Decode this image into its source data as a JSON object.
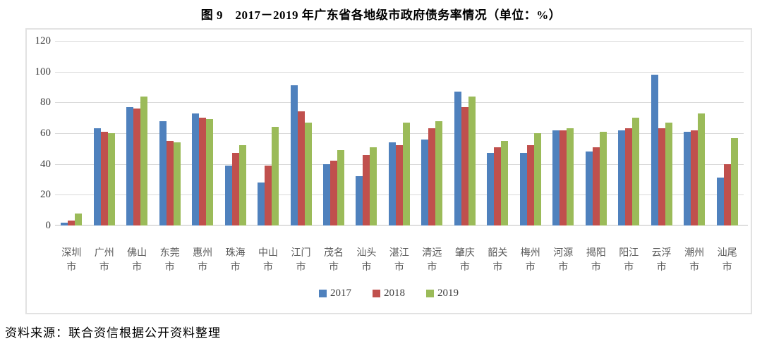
{
  "title": "图 9　2017－2019 年广东省各地级市政府债务率情况（单位：%）",
  "source": "资料来源：联合资信根据公开资料整理",
  "colors": {
    "series_2017": "#4f81bd",
    "series_2018": "#c0504d",
    "series_2019": "#9bbb59",
    "gridline": "#d9d9d9",
    "axis_line": "#bfbfbf",
    "tick_label": "#404040",
    "category_label": "#595959"
  },
  "chart_data": {
    "type": "bar",
    "title": "图 9　2017－2019 年广东省各地级市政府债务率情况（单位：%）",
    "categories": [
      "深圳市",
      "广州市",
      "佛山市",
      "东莞市",
      "惠州市",
      "珠海市",
      "中山市",
      "江门市",
      "茂名市",
      "汕头市",
      "湛江市",
      "清远市",
      "肇庆市",
      "韶关市",
      "梅州市",
      "河源市",
      "揭阳市",
      "阳江市",
      "云浮市",
      "潮州市",
      "汕尾市"
    ],
    "series": [
      {
        "name": "2017",
        "color": "#4f81bd",
        "values": [
          2,
          63,
          77,
          68,
          73,
          39,
          28,
          91,
          40,
          32,
          54,
          56,
          87,
          47,
          47,
          62,
          48,
          62,
          98,
          61,
          31
        ]
      },
      {
        "name": "2018",
        "color": "#c0504d",
        "values": [
          3,
          61,
          76,
          55,
          70,
          47,
          39,
          74,
          42,
          46,
          52,
          63,
          77,
          51,
          52,
          62,
          51,
          63,
          63,
          62,
          40
        ]
      },
      {
        "name": "2019",
        "color": "#9bbb59",
        "values": [
          8,
          60,
          84,
          54,
          69,
          52,
          64,
          67,
          49,
          51,
          67,
          68,
          84,
          55,
          60,
          63,
          61,
          70,
          67,
          73,
          57
        ]
      }
    ],
    "xlabel": "",
    "ylabel": "",
    "ylim": [
      0,
      120
    ],
    "yticks": [
      0,
      20,
      40,
      60,
      80,
      100,
      120
    ],
    "grid": true,
    "legend_position": "bottom"
  }
}
